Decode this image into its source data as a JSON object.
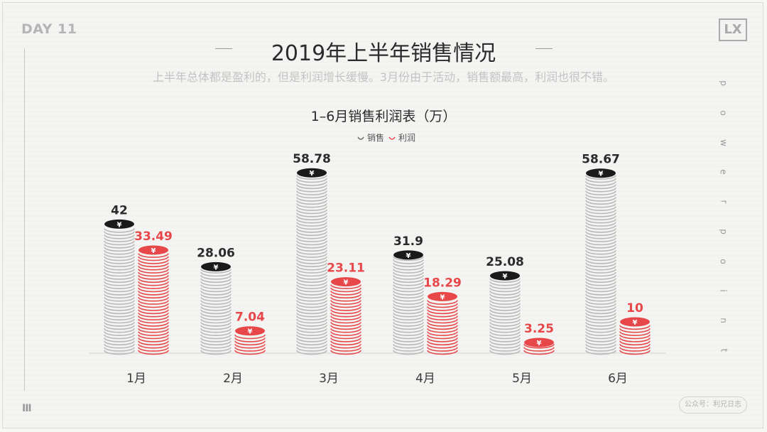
{
  "header": {
    "day_label": "DAY 11",
    "logo": "LX",
    "title": "2019年上半年销售情况",
    "subtitle": "上半年总体都是盈利的，但是利润增长缓慢。3月份由于活动，销售额最高，利润也很不错。",
    "side_text": [
      "p",
      "o",
      "w",
      "e",
      "r",
      "p",
      "o",
      "i",
      "n",
      "t"
    ],
    "badge": "公众号：利兄日志",
    "menu_icon": "bars-icon"
  },
  "chart_data": {
    "type": "bar",
    "title": "1–6月销售利润表（万）",
    "categories": [
      "1月",
      "2月",
      "3月",
      "4月",
      "5月",
      "6月"
    ],
    "series": [
      {
        "name": "销售",
        "values": [
          42,
          28.06,
          58.78,
          31.9,
          25.08,
          58.67
        ],
        "value_labels": [
          "42",
          "28.06",
          "58.78",
          "31.9",
          "25.08",
          "58.67"
        ],
        "color": "#1a1a1a",
        "stack_color": "#b8b8b8"
      },
      {
        "name": "利润",
        "values": [
          33.49,
          7.04,
          23.11,
          18.29,
          3.25,
          10
        ],
        "value_labels": [
          "33.49",
          "7.04",
          "23.11",
          "18.29",
          "3.25",
          "10"
        ],
        "color": "#e8474a",
        "stack_color": "#e8474a"
      }
    ],
    "ylim": [
      0,
      60
    ],
    "legend": "top-center",
    "grid": false,
    "coin_symbol": "¥"
  }
}
